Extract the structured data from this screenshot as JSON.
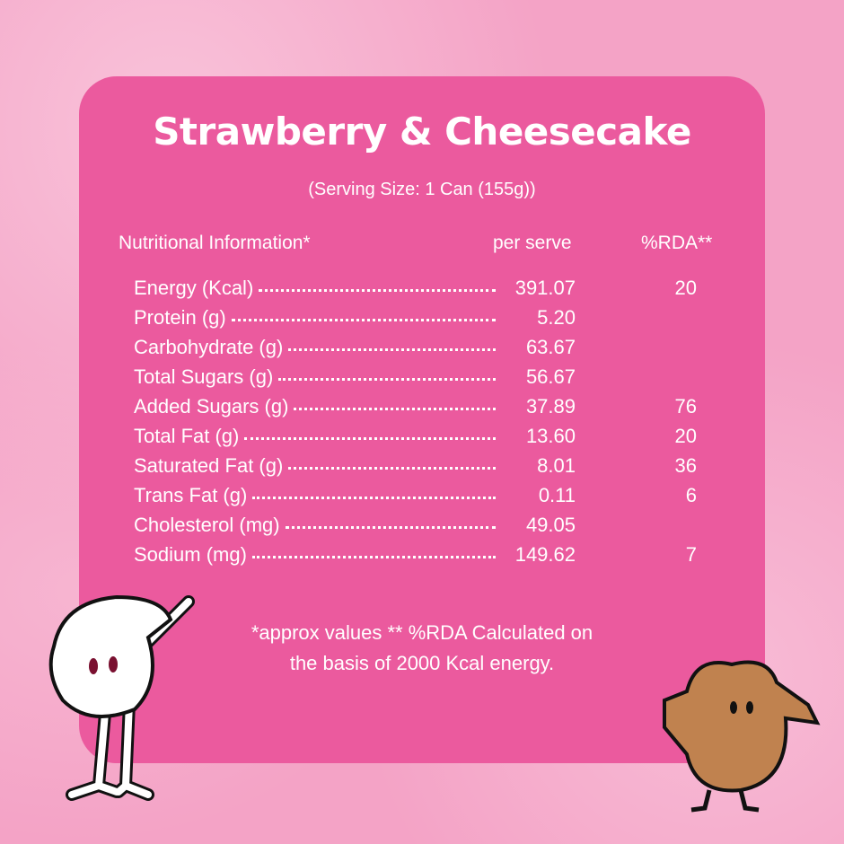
{
  "title": "Strawberry & Cheesecake",
  "serving": "(Serving Size: 1 Can (155g))",
  "headers": [
    "Nutritional Information*",
    "per serve",
    "%RDA**"
  ],
  "rows": [
    {
      "name": "Energy (Kcal)",
      "value": "391.07",
      "rda": "20"
    },
    {
      "name": "Protein (g)",
      "value": "5.20"
    },
    {
      "name": "Carbohydrate (g)",
      "value": "63.67"
    },
    {
      "name": "Total Sugars (g)",
      "value": "56.67"
    },
    {
      "name": "Added Sugars (g)",
      "value": "37.89",
      "rda": "76"
    },
    {
      "name": "Total Fat (g)",
      "value": "13.60",
      "rda": "20"
    },
    {
      "name": "Saturated Fat (g)",
      "value": "8.01",
      "rda": "36"
    },
    {
      "name": "Trans Fat (g)",
      "value": "0.11",
      "rda": "6"
    },
    {
      "name": "Cholesterol (mg)",
      "value": "49.05"
    },
    {
      "name": "Sodium (mg)",
      "value": "149.62",
      "rda": "7"
    }
  ],
  "footnote": [
    "*approx values ** %RDA Calculated on",
    "the basis of 2000 Kcal energy."
  ]
}
